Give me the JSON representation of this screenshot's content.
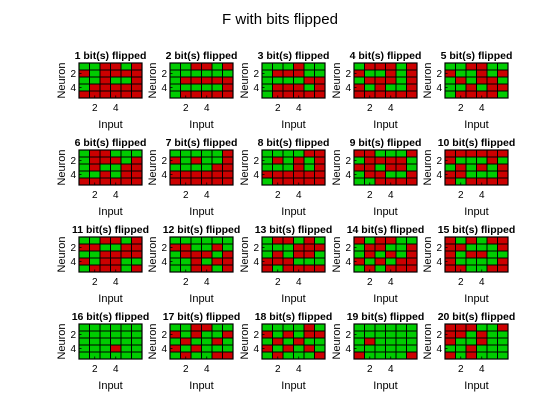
{
  "figure": {
    "title": "F with bits flipped",
    "colors": {
      "on": "#00cc00",
      "off": "#cc0000",
      "grid": "#000000",
      "background": "#ffffff"
    }
  },
  "chart_data": {
    "type": "heatmap",
    "layout": {
      "rows": 4,
      "cols": 5
    },
    "matrix_size": [
      5,
      6
    ],
    "value_legend": {
      "1": "green",
      "0": "red"
    },
    "panels": [
      {
        "title": "1 bit(s) flipped",
        "grid": [
          [
            1,
            1,
            0,
            0,
            1,
            0
          ],
          [
            0,
            1,
            0,
            0,
            0,
            0
          ],
          [
            1,
            1,
            0,
            1,
            1,
            0
          ],
          [
            1,
            0,
            0,
            0,
            0,
            0
          ],
          [
            0,
            0,
            0,
            0,
            0,
            0
          ]
        ]
      },
      {
        "title": "2 bit(s) flipped",
        "grid": [
          [
            1,
            1,
            0,
            0,
            1,
            0
          ],
          [
            1,
            1,
            1,
            1,
            1,
            1
          ],
          [
            1,
            0,
            0,
            0,
            0,
            0
          ],
          [
            1,
            1,
            1,
            1,
            1,
            0
          ],
          [
            1,
            0,
            0,
            0,
            0,
            0
          ]
        ]
      },
      {
        "title": "3 bit(s) flipped",
        "grid": [
          [
            1,
            1,
            1,
            0,
            1,
            1
          ],
          [
            1,
            0,
            0,
            0,
            1,
            1
          ],
          [
            1,
            1,
            1,
            1,
            0,
            0
          ],
          [
            1,
            0,
            0,
            0,
            1,
            0
          ],
          [
            1,
            0,
            0,
            0,
            0,
            0
          ]
        ]
      },
      {
        "title": "4 bit(s) flipped",
        "grid": [
          [
            1,
            0,
            0,
            0,
            1,
            0
          ],
          [
            0,
            1,
            1,
            0,
            1,
            0
          ],
          [
            1,
            0,
            0,
            0,
            1,
            0
          ],
          [
            0,
            1,
            0,
            1,
            1,
            0
          ],
          [
            0,
            0,
            0,
            0,
            0,
            0
          ]
        ]
      },
      {
        "title": "5 bit(s) flipped",
        "grid": [
          [
            1,
            1,
            0,
            0,
            1,
            1
          ],
          [
            0,
            1,
            1,
            0,
            1,
            0
          ],
          [
            1,
            0,
            1,
            0,
            0,
            1
          ],
          [
            1,
            1,
            0,
            1,
            0,
            0
          ],
          [
            1,
            0,
            0,
            0,
            0,
            1
          ]
        ]
      },
      {
        "title": "6 bit(s) flipped",
        "grid": [
          [
            1,
            0,
            0,
            1,
            1,
            1
          ],
          [
            1,
            0,
            0,
            0,
            1,
            0
          ],
          [
            1,
            0,
            1,
            1,
            0,
            0
          ],
          [
            1,
            1,
            0,
            1,
            0,
            0
          ],
          [
            0,
            0,
            0,
            0,
            0,
            0
          ]
        ]
      },
      {
        "title": "7 bit(s) flipped",
        "grid": [
          [
            1,
            1,
            1,
            1,
            1,
            0
          ],
          [
            0,
            1,
            0,
            1,
            1,
            0
          ],
          [
            1,
            1,
            1,
            1,
            0,
            0
          ],
          [
            0,
            0,
            0,
            0,
            0,
            0
          ],
          [
            0,
            0,
            0,
            0,
            0,
            0
          ]
        ]
      },
      {
        "title": "8 bit(s) flipped",
        "grid": [
          [
            1,
            1,
            1,
            1,
            0,
            0
          ],
          [
            1,
            0,
            1,
            0,
            1,
            0
          ],
          [
            1,
            1,
            1,
            0,
            1,
            0
          ],
          [
            0,
            0,
            0,
            0,
            0,
            0
          ],
          [
            1,
            0,
            0,
            0,
            0,
            0
          ]
        ]
      },
      {
        "title": "9 bit(s) flipped",
        "grid": [
          [
            0,
            0,
            1,
            1,
            1,
            0
          ],
          [
            1,
            0,
            0,
            0,
            0,
            1
          ],
          [
            0,
            0,
            1,
            0,
            0,
            1
          ],
          [
            1,
            0,
            0,
            1,
            1,
            0
          ],
          [
            1,
            1,
            0,
            0,
            0,
            0
          ]
        ]
      },
      {
        "title": "10 bit(s) flipped",
        "grid": [
          [
            0,
            0,
            0,
            0,
            0,
            0
          ],
          [
            0,
            1,
            1,
            1,
            0,
            1
          ],
          [
            1,
            0,
            1,
            0,
            1,
            0
          ],
          [
            0,
            0,
            1,
            1,
            1,
            0
          ],
          [
            0,
            1,
            0,
            0,
            0,
            0
          ]
        ]
      },
      {
        "title": "11 bit(s) flipped",
        "grid": [
          [
            1,
            1,
            0,
            0,
            1,
            0
          ],
          [
            0,
            0,
            1,
            1,
            0,
            0
          ],
          [
            1,
            1,
            0,
            0,
            0,
            0
          ],
          [
            0,
            1,
            0,
            0,
            1,
            1
          ],
          [
            1,
            0,
            0,
            0,
            1,
            0
          ]
        ]
      },
      {
        "title": "12 bit(s) flipped",
        "grid": [
          [
            1,
            1,
            1,
            1,
            1,
            1
          ],
          [
            0,
            0,
            1,
            1,
            0,
            1
          ],
          [
            1,
            0,
            0,
            0,
            1,
            0
          ],
          [
            1,
            1,
            0,
            1,
            0,
            0
          ],
          [
            1,
            1,
            0,
            0,
            1,
            0
          ]
        ]
      },
      {
        "title": "13 bit(s) flipped",
        "grid": [
          [
            1,
            0,
            0,
            1,
            0,
            1
          ],
          [
            1,
            1,
            1,
            0,
            0,
            0
          ],
          [
            1,
            0,
            1,
            0,
            0,
            1
          ],
          [
            0,
            0,
            0,
            1,
            1,
            1
          ],
          [
            0,
            1,
            0,
            0,
            0,
            0
          ]
        ]
      },
      {
        "title": "14 bit(s) flipped",
        "grid": [
          [
            0,
            1,
            0,
            0,
            1,
            1
          ],
          [
            1,
            0,
            0,
            1,
            1,
            0
          ],
          [
            1,
            0,
            1,
            0,
            1,
            0
          ],
          [
            0,
            1,
            0,
            1,
            0,
            0
          ],
          [
            1,
            0,
            1,
            0,
            0,
            0
          ]
        ]
      },
      {
        "title": "15 bit(s) flipped",
        "grid": [
          [
            0,
            1,
            0,
            1,
            0,
            0
          ],
          [
            0,
            0,
            1,
            1,
            1,
            0
          ],
          [
            0,
            1,
            0,
            0,
            1,
            1
          ],
          [
            0,
            1,
            1,
            1,
            1,
            0
          ],
          [
            0,
            0,
            1,
            1,
            0,
            0
          ]
        ]
      },
      {
        "title": "16 bit(s) flipped",
        "grid": [
          [
            1,
            1,
            1,
            1,
            1,
            1
          ],
          [
            1,
            1,
            1,
            1,
            1,
            1
          ],
          [
            1,
            1,
            1,
            1,
            1,
            1
          ],
          [
            1,
            1,
            1,
            0,
            1,
            1
          ],
          [
            1,
            1,
            1,
            1,
            1,
            1
          ]
        ]
      },
      {
        "title": "17 bit(s) flipped",
        "grid": [
          [
            1,
            1,
            0,
            0,
            1,
            1
          ],
          [
            0,
            1,
            0,
            1,
            1,
            0
          ],
          [
            1,
            0,
            1,
            1,
            0,
            1
          ],
          [
            0,
            1,
            0,
            1,
            1,
            1
          ],
          [
            1,
            0,
            1,
            1,
            0,
            0
          ]
        ]
      },
      {
        "title": "18 bit(s) flipped",
        "grid": [
          [
            1,
            1,
            1,
            1,
            0,
            1
          ],
          [
            0,
            1,
            0,
            1,
            0,
            0
          ],
          [
            1,
            0,
            1,
            0,
            1,
            1
          ],
          [
            0,
            1,
            0,
            1,
            0,
            1
          ],
          [
            1,
            0,
            1,
            1,
            1,
            0
          ]
        ]
      },
      {
        "title": "19 bit(s) flipped",
        "grid": [
          [
            1,
            1,
            1,
            1,
            1,
            1
          ],
          [
            1,
            1,
            1,
            1,
            1,
            1
          ],
          [
            1,
            0,
            1,
            1,
            1,
            1
          ],
          [
            1,
            1,
            1,
            1,
            1,
            1
          ],
          [
            0,
            1,
            1,
            1,
            1,
            0
          ]
        ]
      },
      {
        "title": "20 bit(s) flipped",
        "grid": [
          [
            0,
            0,
            0,
            1,
            1,
            0
          ],
          [
            0,
            0,
            1,
            0,
            1,
            1
          ],
          [
            0,
            1,
            1,
            0,
            1,
            1
          ],
          [
            1,
            1,
            0,
            1,
            1,
            1
          ],
          [
            0,
            1,
            0,
            1,
            1,
            1
          ]
        ]
      }
    ],
    "xlabel": "Input",
    "ylabel": "Neuron",
    "xticks": [
      2,
      4
    ],
    "yticks": [
      2,
      4
    ]
  }
}
